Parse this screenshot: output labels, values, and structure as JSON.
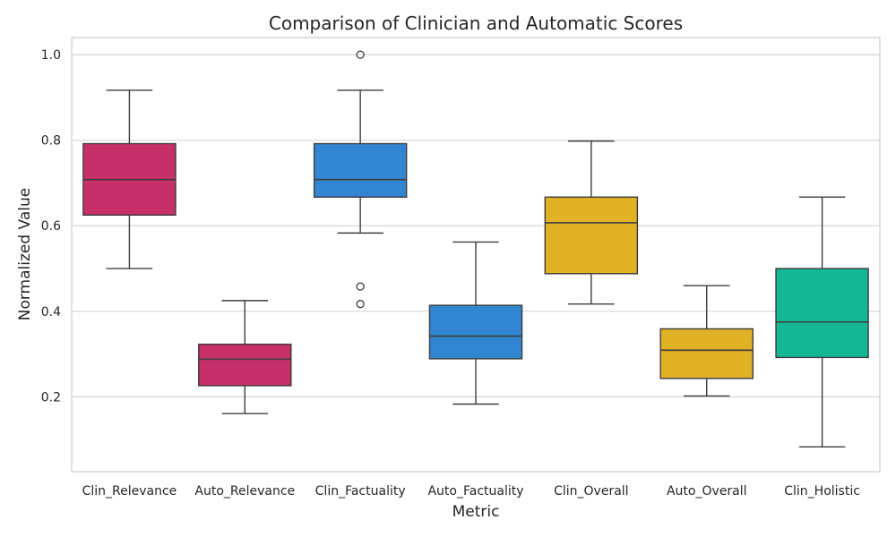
{
  "chart_data": {
    "type": "box",
    "title": "Comparison of Clinician and Automatic Scores",
    "xlabel": "Metric",
    "ylabel": "Normalized Value",
    "ylim": [
      0.025,
      1.04
    ],
    "yticks": [
      "0.2",
      "0.4",
      "0.6",
      "0.8",
      "1.0"
    ],
    "grid": true,
    "legend": "none",
    "categories": [
      "Clin_Relevance",
      "Auto_Relevance",
      "Clin_Factuality",
      "Auto_Factuality",
      "Clin_Overall",
      "Auto_Overall",
      "Clin_Holistic"
    ],
    "boxes": [
      {
        "category": "Clin_Relevance",
        "color": "#c62f67",
        "whisker_low": 0.5,
        "q1": 0.625,
        "median": 0.708,
        "q3": 0.792,
        "whisker_high": 0.917,
        "outliers": []
      },
      {
        "category": "Auto_Relevance",
        "color": "#c62f67",
        "whisker_low": 0.161,
        "q1": 0.226,
        "median": 0.288,
        "q3": 0.323,
        "whisker_high": 0.425,
        "outliers": []
      },
      {
        "category": "Clin_Factuality",
        "color": "#3286d1",
        "whisker_low": 0.583,
        "q1": 0.667,
        "median": 0.708,
        "q3": 0.792,
        "whisker_high": 0.917,
        "outliers": [
          1.0,
          0.458,
          0.417
        ]
      },
      {
        "category": "Auto_Factuality",
        "color": "#3286d1",
        "whisker_low": 0.183,
        "q1": 0.289,
        "median": 0.342,
        "q3": 0.414,
        "whisker_high": 0.562,
        "outliers": []
      },
      {
        "category": "Clin_Overall",
        "color": "#e1b126",
        "whisker_low": 0.417,
        "q1": 0.488,
        "median": 0.607,
        "q3": 0.667,
        "whisker_high": 0.798,
        "outliers": []
      },
      {
        "category": "Auto_Overall",
        "color": "#e1b126",
        "whisker_low": 0.202,
        "q1": 0.243,
        "median": 0.309,
        "q3": 0.359,
        "whisker_high": 0.46,
        "outliers": []
      },
      {
        "category": "Clin_Holistic",
        "color": "#13b695",
        "whisker_low": 0.083,
        "q1": 0.292,
        "median": 0.375,
        "q3": 0.5,
        "whisker_high": 0.667,
        "outliers": []
      }
    ]
  }
}
